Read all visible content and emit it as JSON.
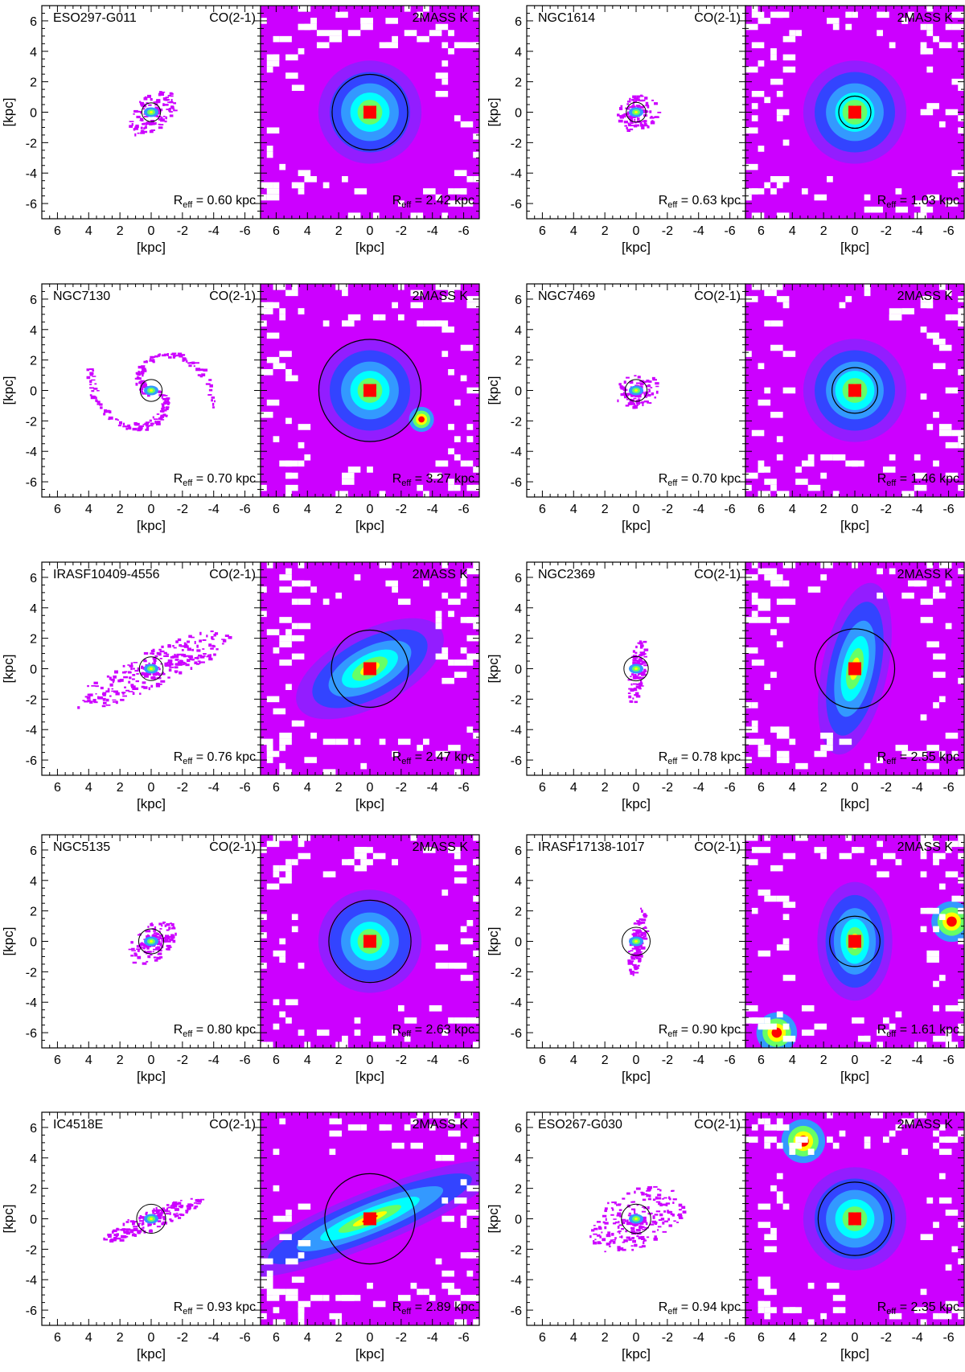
{
  "figure": {
    "axis_unit_label": "[kpc]",
    "tick_values": [
      6,
      4,
      2,
      0,
      -2,
      -4,
      -6
    ],
    "axis_range": [
      7,
      -7
    ],
    "co_line_label": "CO(2-1)",
    "nir_band_label": "2MASS K",
    "reff_prefix": "R",
    "reff_subscript": "eff",
    "reff_suffix": " kpc",
    "colormap": [
      "#ff0000",
      "#ffff00",
      "#66ff66",
      "#00ffff",
      "#3399ff",
      "#3344ff",
      "#8822ff",
      "#cc00ff"
    ]
  },
  "chart_data": [
    {
      "type": "heatmap",
      "galaxy": "ESO297-G011",
      "co_reff": "0.60",
      "k_reff": "2.42",
      "co_shape": "compact-spiral",
      "k_shape": "round"
    },
    {
      "type": "heatmap",
      "galaxy": "NGC1614",
      "co_reff": "0.63",
      "k_reff": "1.03",
      "co_shape": "compact",
      "k_shape": "round"
    },
    {
      "type": "heatmap",
      "galaxy": "NGC7130",
      "co_reff": "0.70",
      "k_reff": "3.27",
      "co_shape": "grand-spiral",
      "k_shape": "round-companion"
    },
    {
      "type": "heatmap",
      "galaxy": "NGC7469",
      "co_reff": "0.70",
      "k_reff": "1.46",
      "co_shape": "compact",
      "k_shape": "round"
    },
    {
      "type": "heatmap",
      "galaxy": "IRASF10409-4556",
      "co_reff": "0.76",
      "k_reff": "2.47",
      "co_shape": "elongated-disk",
      "k_shape": "elongated"
    },
    {
      "type": "heatmap",
      "galaxy": "NGC2369",
      "co_reff": "0.78",
      "k_reff": "2.55",
      "co_shape": "edge-on",
      "k_shape": "vertical"
    },
    {
      "type": "heatmap",
      "galaxy": "NGC5135",
      "co_reff": "0.80",
      "k_reff": "2.63",
      "co_shape": "compact-spiral",
      "k_shape": "round"
    },
    {
      "type": "heatmap",
      "galaxy": "IRASF17138-1017",
      "co_reff": "0.90",
      "k_reff": "1.61",
      "co_shape": "edge-on",
      "k_shape": "round-two-companions"
    },
    {
      "type": "heatmap",
      "galaxy": "IC4518E",
      "co_reff": "0.93",
      "k_reff": "2.89",
      "co_shape": "inclined-bar",
      "k_shape": "inclined-band"
    },
    {
      "type": "heatmap",
      "galaxy": "ESO267-G030",
      "co_reff": "0.94",
      "k_reff": "2.35",
      "co_shape": "clumpy-disk",
      "k_shape": "round-companion-top"
    }
  ]
}
